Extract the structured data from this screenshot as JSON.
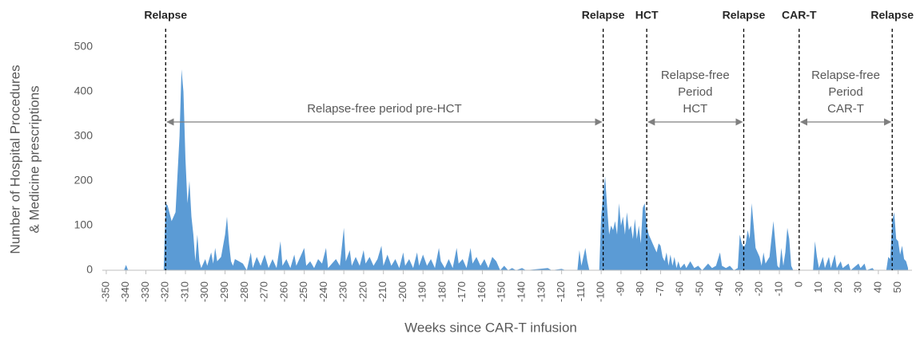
{
  "chart_data": {
    "type": "area",
    "color": "#5b9bd5",
    "xlabel": "Weeks since CAR-T infusion",
    "ylabel": [
      "Number of Hospital Procedures",
      "& Medicine prescriptions"
    ],
    "xlim": [
      -352,
      57
    ],
    "ylim": [
      0,
      500
    ],
    "xticks": [
      -350,
      -340,
      -330,
      -320,
      -310,
      -300,
      -290,
      -280,
      -270,
      -260,
      -250,
      -240,
      -230,
      -220,
      -210,
      -200,
      -190,
      -180,
      -170,
      -160,
      -150,
      -140,
      -130,
      -120,
      -110,
      -100,
      -90,
      -80,
      -70,
      -60,
      -50,
      -40,
      -30,
      -20,
      -10,
      0,
      10,
      20,
      30,
      40,
      50
    ],
    "yticks": [
      0,
      100,
      200,
      300,
      400,
      500
    ],
    "events": [
      {
        "label": "Relapse",
        "x": -320
      },
      {
        "label": "Relapse",
        "x": -99
      },
      {
        "label": "HCT",
        "x": -77
      },
      {
        "label": "Relapse",
        "x": -28
      },
      {
        "label": "CAR-T",
        "x": 0
      },
      {
        "label": "Relapse",
        "x": 47
      }
    ],
    "periods": [
      {
        "label": [
          "Relapse-free period pre-HCT"
        ],
        "from": -320,
        "to": -99
      },
      {
        "label": [
          "Relapse-free",
          "Period",
          "HCT"
        ],
        "from": -77,
        "to": -28
      },
      {
        "label": [
          "Relapse-free",
          "Period",
          "CAR-T"
        ],
        "from": 0,
        "to": 47
      }
    ],
    "x": [
      -350,
      -341,
      -340,
      -339,
      -321,
      -320,
      -319,
      -317,
      -315,
      -313,
      -312,
      -311,
      -310,
      -309,
      -308,
      -307,
      -306,
      -305,
      -304,
      -303,
      -302,
      -300,
      -299,
      -297,
      -296,
      -295,
      -294,
      -292,
      -290,
      -289,
      -288,
      -287,
      -286,
      -285,
      -283,
      -281,
      -279,
      -277,
      -276,
      -274,
      -272,
      -270,
      -268,
      -266,
      -264,
      -262,
      -261,
      -259,
      -257,
      -255,
      -254,
      -252,
      -250,
      -249,
      -247,
      -245,
      -243,
      -241,
      -239,
      -238,
      -236,
      -234,
      -232,
      -230,
      -229,
      -227,
      -226,
      -224,
      -222,
      -220,
      -219,
      -217,
      -215,
      -213,
      -211,
      -210,
      -208,
      -206,
      -204,
      -202,
      -200,
      -199,
      -197,
      -195,
      -193,
      -192,
      -190,
      -188,
      -186,
      -184,
      -182,
      -181,
      -179,
      -177,
      -175,
      -173,
      -172,
      -170,
      -168,
      -166,
      -165,
      -163,
      -161,
      -159,
      -157,
      -155,
      -153,
      -151,
      -149,
      -147,
      -145,
      -143,
      -140,
      -138,
      -127,
      -125,
      -120,
      -118,
      -112,
      -111,
      -110,
      -108,
      -107,
      -106,
      -101,
      -100,
      -99,
      -98,
      -97,
      -96,
      -95,
      -94,
      -93,
      -92,
      -91,
      -90,
      -89,
      -88,
      -87,
      -86,
      -85,
      -84,
      -83,
      -82,
      -81,
      -80,
      -79,
      -78,
      -77,
      -76,
      -75,
      -74,
      -73,
      -72,
      -71,
      -70,
      -69,
      -68,
      -67,
      -66,
      -65,
      -64,
      -63,
      -62,
      -61,
      -60,
      -58,
      -57,
      -55,
      -53,
      -51,
      -49,
      -46,
      -44,
      -42,
      -40,
      -39,
      -37,
      -35,
      -33,
      -31,
      -30,
      -29,
      -28,
      -27,
      -26,
      -25,
      -24,
      -23,
      -22,
      -21,
      -20,
      -19,
      -18,
      -17,
      -15,
      -14,
      -13,
      -12,
      -11,
      -10,
      -9,
      -8,
      -7,
      -6,
      -5,
      -4,
      -3,
      0,
      7,
      8,
      9,
      10,
      12,
      13,
      15,
      16,
      18,
      19,
      21,
      22,
      25,
      26,
      30,
      31,
      33,
      34,
      37,
      38,
      44,
      45,
      46,
      47,
      48,
      49,
      50,
      51,
      52,
      53,
      54,
      55
    ],
    "values": [
      0,
      0,
      12,
      0,
      0,
      150,
      145,
      110,
      130,
      300,
      450,
      400,
      250,
      150,
      200,
      120,
      80,
      20,
      80,
      20,
      5,
      25,
      10,
      40,
      15,
      50,
      20,
      30,
      80,
      120,
      60,
      20,
      10,
      25,
      20,
      15,
      0,
      40,
      5,
      30,
      10,
      35,
      5,
      25,
      5,
      65,
      10,
      25,
      5,
      35,
      10,
      30,
      50,
      10,
      20,
      5,
      25,
      15,
      50,
      5,
      15,
      25,
      10,
      95,
      20,
      45,
      10,
      30,
      10,
      45,
      15,
      30,
      10,
      25,
      55,
      10,
      35,
      10,
      25,
      5,
      40,
      10,
      25,
      5,
      40,
      10,
      35,
      10,
      25,
      5,
      50,
      20,
      5,
      25,
      5,
      50,
      15,
      25,
      5,
      50,
      15,
      30,
      10,
      25,
      5,
      30,
      20,
      0,
      10,
      0,
      5,
      0,
      5,
      0,
      5,
      0,
      3,
      0,
      0,
      45,
      10,
      50,
      20,
      0,
      0,
      120,
      170,
      210,
      140,
      80,
      100,
      90,
      110,
      80,
      150,
      100,
      120,
      80,
      130,
      90,
      100,
      70,
      115,
      70,
      100,
      60,
      140,
      150,
      100,
      80,
      70,
      60,
      50,
      40,
      60,
      55,
      30,
      20,
      40,
      10,
      35,
      10,
      30,
      5,
      20,
      5,
      15,
      5,
      20,
      5,
      10,
      0,
      15,
      5,
      10,
      40,
      10,
      5,
      10,
      0,
      5,
      80,
      60,
      50,
      60,
      90,
      70,
      150,
      100,
      50,
      40,
      30,
      10,
      40,
      15,
      30,
      70,
      110,
      60,
      10,
      5,
      50,
      10,
      40,
      95,
      70,
      10,
      0,
      0,
      0,
      65,
      30,
      5,
      30,
      5,
      30,
      5,
      35,
      5,
      20,
      5,
      15,
      0,
      15,
      5,
      15,
      0,
      5,
      0,
      0,
      30,
      25,
      110,
      130,
      70,
      65,
      35,
      55,
      25,
      20,
      5
    ]
  }
}
